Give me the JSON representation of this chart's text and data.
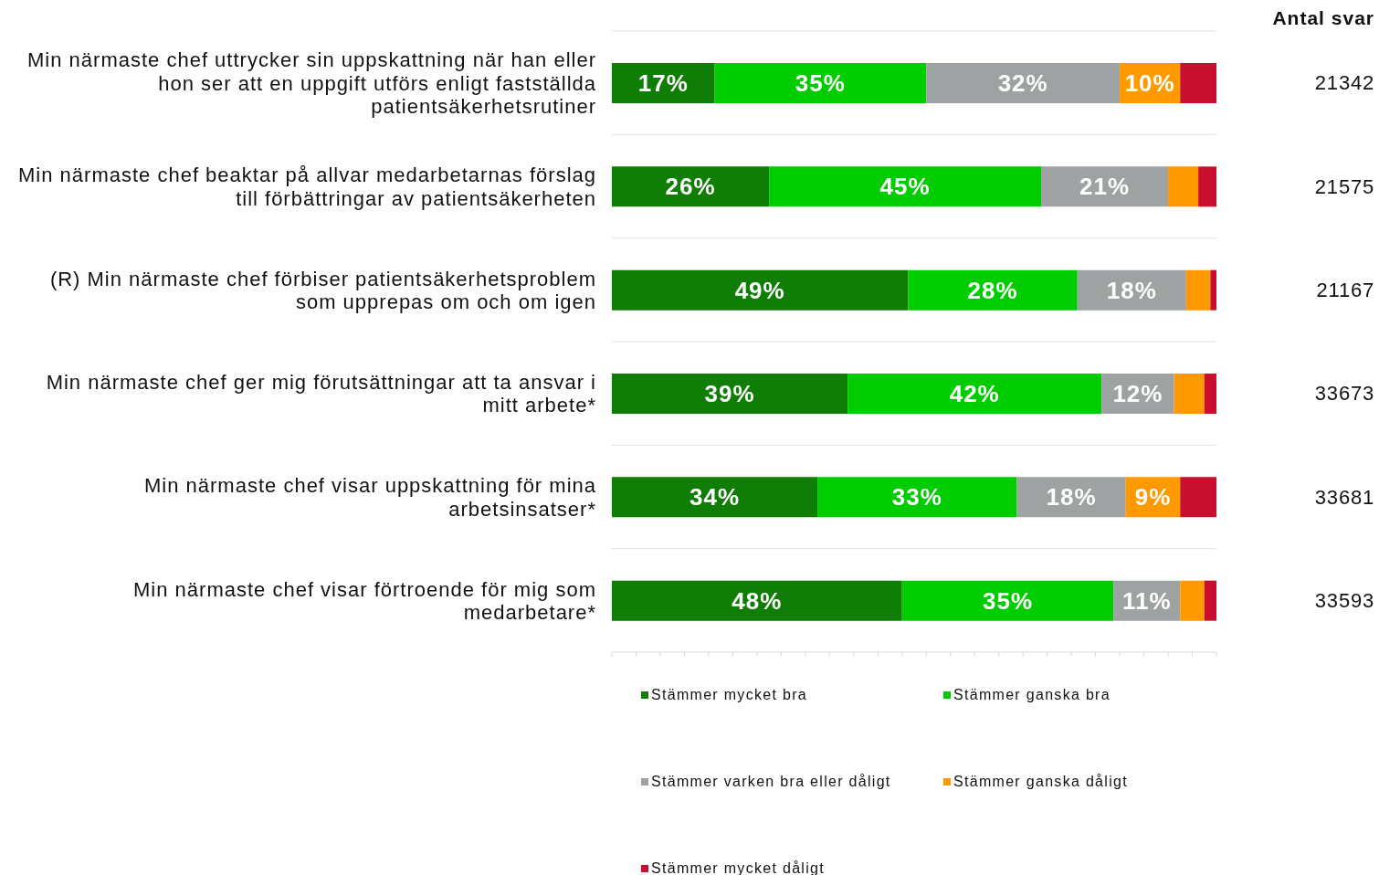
{
  "chart_data": {
    "type": "bar",
    "orientation": "horizontal",
    "stacked": true,
    "categories": [
      "Min närmaste chef uttrycker sin uppskattning när han eller hon ser att en uppgift utförs enligt fastställda patientsäkerhetsrutiner",
      "Min närmaste chef beaktar på allvar medarbetarnas förslag till förbättringar av patientsäkerheten",
      "(R) Min närmaste chef förbiser patientsäkerhetsproblem som upprepas om och om igen",
      "Min närmaste chef ger mig förutsättningar att ta ansvar i mitt arbete*",
      "Min närmaste chef visar uppskattning för mina arbetsinsatser*",
      "Min närmaste chef visar förtroende för mig som medarbetare*"
    ],
    "y2label": "Antal svar",
    "y2_categories": [
      "21342",
      "21575",
      "21167",
      "33673",
      "33681",
      "33593"
    ],
    "series": [
      {
        "name": "Stämmer mycket bra",
        "color": "#0f7d06",
        "values": [
          17,
          26,
          49,
          39,
          34,
          48
        ],
        "value_labels": [
          "17%",
          "26%",
          "49%",
          "39%",
          "34%",
          "48%"
        ]
      },
      {
        "name": "Stämmer ganska bra",
        "color": "#00cc00",
        "values": [
          35,
          45,
          28,
          42,
          33,
          35
        ],
        "value_labels": [
          "35%",
          "45%",
          "28%",
          "42%",
          "33%",
          "35%"
        ]
      },
      {
        "name": "Stämmer varken bra eller dåligt",
        "color": "#9ea2a3",
        "values": [
          32,
          21,
          18,
          12,
          18,
          11
        ],
        "value_labels": [
          "32%",
          "21%",
          "18%",
          "12%",
          "18%",
          "11%"
        ]
      },
      {
        "name": "Stämmer ganska dåligt",
        "color": "#ff9900",
        "values": [
          10,
          5,
          4,
          5,
          9,
          4
        ],
        "value_labels": [
          "10%",
          null,
          null,
          null,
          "9%",
          null
        ]
      },
      {
        "name": "Stämmer mycket dåligt",
        "color": "#c8102e",
        "values": [
          6,
          3,
          1,
          2,
          6,
          2
        ],
        "value_labels": [
          null,
          null,
          null,
          null,
          null,
          null
        ]
      }
    ],
    "xlim": [
      0,
      100
    ],
    "xticks": [
      {
        "value": 0,
        "label": null
      },
      {
        "value": 4,
        "label": null
      },
      {
        "value": 8,
        "label": null
      },
      {
        "value": 12,
        "label": null
      },
      {
        "value": 16,
        "label": null
      },
      {
        "value": 20,
        "label": null
      },
      {
        "value": 24,
        "label": null
      },
      {
        "value": 28,
        "label": null
      },
      {
        "value": 32,
        "label": null
      },
      {
        "value": 36,
        "label": null
      },
      {
        "value": 40,
        "label": null
      },
      {
        "value": 44,
        "label": null
      },
      {
        "value": 48,
        "label": null
      },
      {
        "value": 52,
        "label": null
      },
      {
        "value": 56,
        "label": null
      },
      {
        "value": 60,
        "label": null
      },
      {
        "value": 64,
        "label": null
      },
      {
        "value": 68,
        "label": null
      },
      {
        "value": 72,
        "label": null
      },
      {
        "value": 76,
        "label": null
      },
      {
        "value": 80,
        "label": null
      },
      {
        "value": 84,
        "label": null
      },
      {
        "value": 88,
        "label": null
      },
      {
        "value": 92,
        "label": null
      },
      {
        "value": 96,
        "label": null
      },
      {
        "value": 100,
        "label": null
      }
    ],
    "tick_labels": "y",
    "grid": "y",
    "legend": "bottom"
  }
}
